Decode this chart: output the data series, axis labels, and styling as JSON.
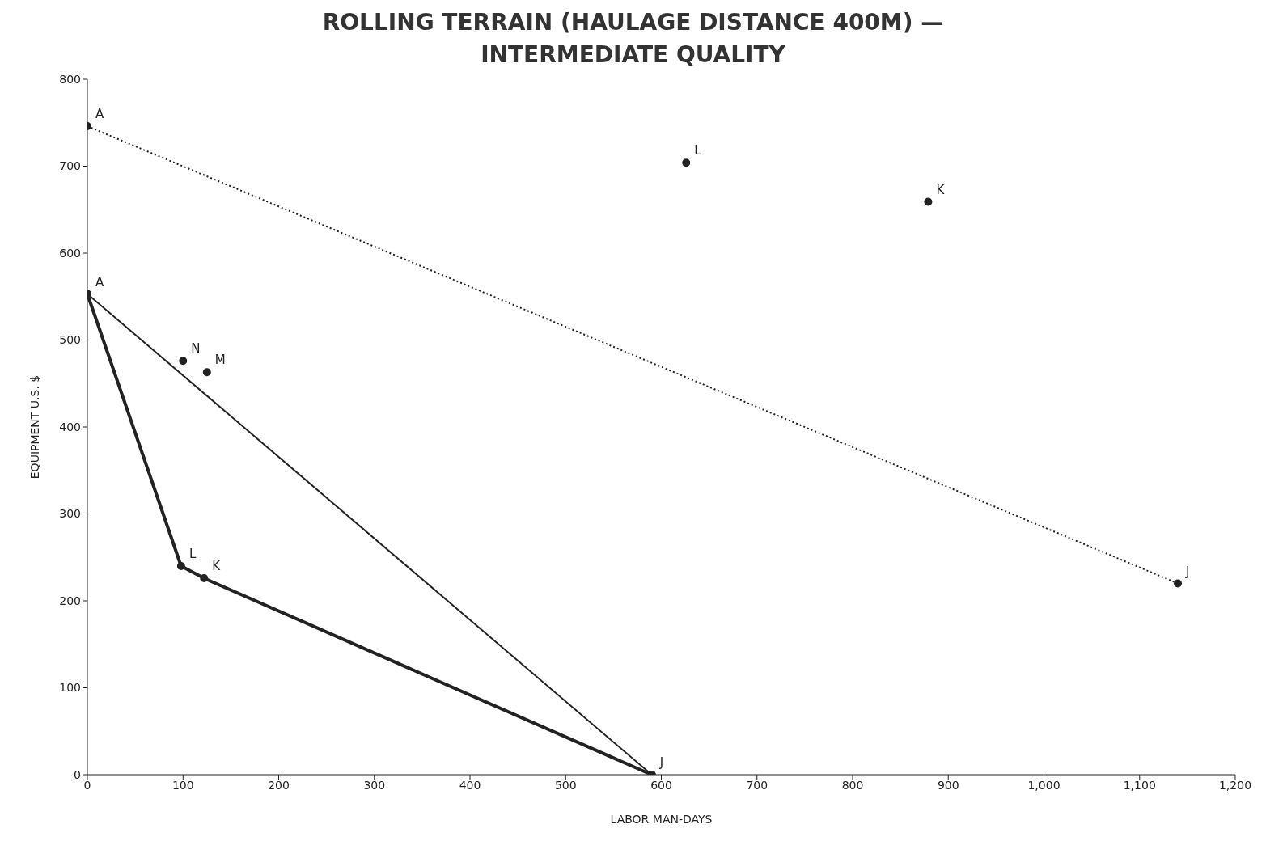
{
  "chart_data": {
    "type": "line",
    "title": "ROLLING TERRAIN (HAULAGE DISTANCE 400M) — INTERMEDIATE QUALITY",
    "xlabel": "LABOR MAN-DAYS",
    "ylabel": "EQUIPMENT U.S. $",
    "xlim": [
      0,
      1200
    ],
    "xticks": [
      0,
      100,
      200,
      300,
      400,
      500,
      600,
      700,
      800,
      900,
      {
        "value": 1000,
        "label": "1,000"
      },
      {
        "value": 1100,
        "label": "1,100"
      },
      {
        "value": 1200,
        "label": "1,200"
      }
    ],
    "ylim": [
      0,
      800
    ],
    "yticks": [
      0,
      100,
      200,
      300,
      400,
      500,
      600,
      700,
      800
    ],
    "grid": false,
    "marker": "circle",
    "series": [
      {
        "color": "#222222",
        "line_style": "dotted",
        "x": [
          0,
          1140
        ],
        "values": [
          746,
          220
        ]
      },
      {
        "color": "#222222",
        "line_style": "solid",
        "x": [
          0,
          98,
          122,
          590
        ],
        "values": [
          553,
          240,
          226,
          0
        ]
      },
      {
        "color": "#222222",
        "line_style": "solid",
        "x": [
          0,
          590
        ],
        "values": [
          553,
          0
        ]
      },
      {
        "type": "scatter",
        "color": "#222222",
        "x": [
          626,
          879,
          100,
          125
        ],
        "values": [
          704,
          659,
          476,
          463
        ]
      }
    ],
    "annotations": [
      {
        "text": "A",
        "x": 0,
        "y": 746
      },
      {
        "text": "A",
        "x": 0,
        "y": 553
      },
      {
        "text": "L",
        "x": 98,
        "y": 240
      },
      {
        "text": "K",
        "x": 122,
        "y": 226
      },
      {
        "text": "J",
        "x": 590,
        "y": 0
      },
      {
        "text": "J",
        "x": 1140,
        "y": 220
      },
      {
        "text": "N",
        "x": 100,
        "y": 476
      },
      {
        "text": "M",
        "x": 125,
        "y": 463
      },
      {
        "text": "L",
        "x": 626,
        "y": 704
      },
      {
        "text": "K",
        "x": 879,
        "y": 659
      }
    ]
  }
}
